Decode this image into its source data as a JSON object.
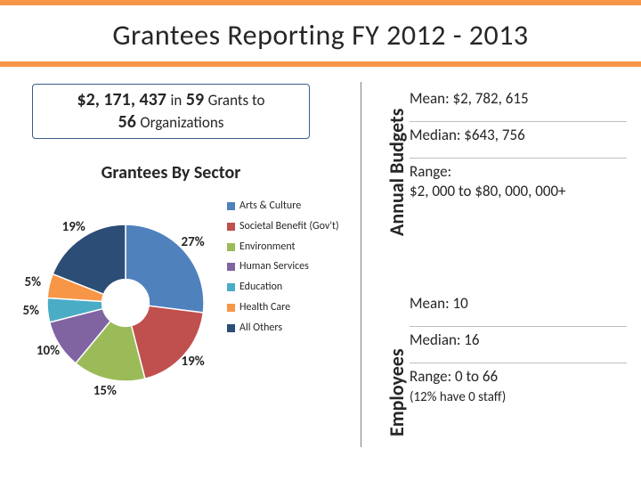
{
  "title": "Grantees Reporting FY 2012 - 2013",
  "accent_color": "#f79646",
  "summary": {
    "amount": "$2, 171, 437",
    "in_word": "in",
    "grants_count": "59",
    "grants_word": "Grants to",
    "orgs_count": "56",
    "orgs_word": "Organizations",
    "border_color": "#385d8a"
  },
  "sector_title": "Grantees By Sector",
  "donut": {
    "type": "pie",
    "inner_radius_pct": 30,
    "start_angle_deg": 0,
    "direction": "clockwise",
    "background_color": "#ffffff",
    "slices": [
      {
        "label": "Arts & Culture",
        "pct": 27,
        "color": "#4f81bd",
        "show_pct": "27%"
      },
      {
        "label": "Societal Benefit (Gov't)",
        "pct": 19,
        "color": "#c0504d",
        "show_pct": "19%"
      },
      {
        "label": "Environment",
        "pct": 15,
        "color": "#9bbb59",
        "show_pct": "15%"
      },
      {
        "label": "Human Services",
        "pct": 10,
        "color": "#8064a2",
        "show_pct": "10%"
      },
      {
        "label": "Education",
        "pct": 5,
        "color": "#4bacc6",
        "show_pct": "5%"
      },
      {
        "label": "Health Care",
        "pct": 5,
        "color": "#f79646",
        "show_pct": "5%"
      },
      {
        "label": "All Others",
        "pct": 19,
        "color": "#2c4d75",
        "show_pct": "19%"
      }
    ]
  },
  "legend_font_size": 12,
  "side_labels": {
    "budgets": "Annual Budgets",
    "employees": "Employees"
  },
  "budgets": {
    "mean_label": "Mean:",
    "mean_value": "$2, 782, 615",
    "median_label": "Median:",
    "median_value": "$643, 756",
    "range_label": "Range:",
    "range_value": "$2, 000 to $80, 000, 000+"
  },
  "employees": {
    "mean_label": "Mean:",
    "mean_value": "10",
    "median_label": "Median:",
    "median_value": "16",
    "range_label": "Range:",
    "range_value": "0 to 66",
    "range_note": "(12% have 0 staff)"
  },
  "divider_color": "#bfbfbf",
  "text_color": "#262626"
}
